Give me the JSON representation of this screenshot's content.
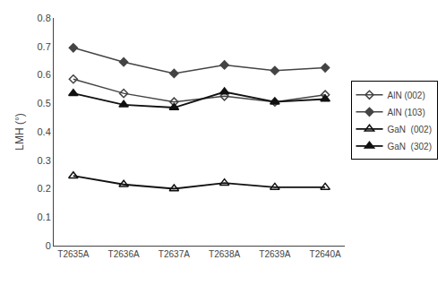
{
  "chart_data": {
    "type": "line",
    "categories": [
      "T2635A",
      "T2636A",
      "T2637A",
      "T2638A",
      "T2639A",
      "T2640A"
    ],
    "series": [
      {
        "name": "AlN (002)",
        "color": "#444444",
        "marker": "diamond-open",
        "values": [
          0.585,
          0.535,
          0.505,
          0.525,
          0.505,
          0.53
        ]
      },
      {
        "name": "AlN (103)",
        "color": "#444444",
        "marker": "diamond",
        "values": [
          0.695,
          0.645,
          0.605,
          0.635,
          0.615,
          0.625
        ]
      },
      {
        "name": "GaN  (002)",
        "color": "#111111",
        "marker": "triangle-up-open",
        "values": [
          0.245,
          0.215,
          0.2,
          0.22,
          0.205,
          0.205
        ]
      },
      {
        "name": "GaN  (302)",
        "color": "#111111",
        "marker": "triangle-up",
        "values": [
          0.535,
          0.495,
          0.485,
          0.54,
          0.505,
          0.515
        ]
      }
    ],
    "ylabel": "LMH (°)",
    "ylim": [
      0,
      0.8
    ],
    "yticks": [
      0,
      0.1,
      0.2,
      0.3,
      0.4,
      0.5,
      0.6,
      0.7,
      0.8
    ],
    "grid": false,
    "legend": "right"
  }
}
